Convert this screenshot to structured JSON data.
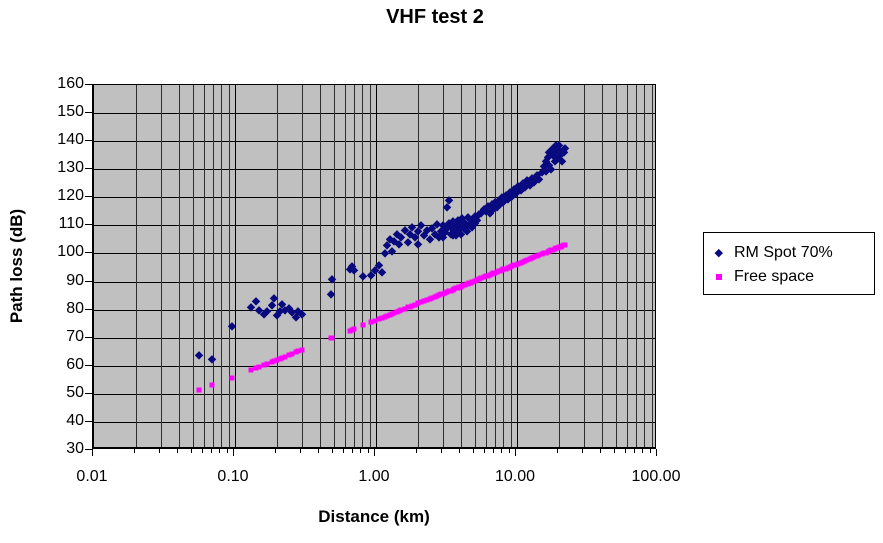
{
  "colors": {
    "plot_background": "#C0C0C0",
    "rm_spot": "#0A0A80",
    "free_space": "#FF00FF"
  },
  "legend": {
    "position": "right",
    "items": [
      {
        "label": "RM Spot 70%",
        "marker": "diamond",
        "color": "#0A0A80"
      },
      {
        "label": "Free space",
        "marker": "square",
        "color": "#FF00FF"
      }
    ]
  },
  "chart_data": {
    "type": "scatter",
    "title": "VHF test 2",
    "xlabel": "Distance (km)",
    "ylabel": "Path loss (dB)",
    "x_scale": "log",
    "xlim": [
      0.01,
      100
    ],
    "ylim": [
      30,
      160
    ],
    "y_step": 10,
    "grid": true,
    "legend_position": "right",
    "x_ticks": [
      "0.01",
      "0.10",
      "1.00",
      "10.00",
      "100.00"
    ],
    "y_ticks": [
      160,
      150,
      140,
      130,
      120,
      110,
      100,
      90,
      80,
      70,
      60,
      50,
      40,
      30
    ],
    "series": [
      {
        "name": "RM Spot 70%",
        "marker": "diamond",
        "color": "#0A0A80",
        "points": [
          [
            0.056,
            64
          ],
          [
            0.069,
            62.5
          ],
          [
            0.095,
            74
          ],
          [
            0.13,
            81
          ],
          [
            0.14,
            83
          ],
          [
            0.148,
            80
          ],
          [
            0.16,
            78.5
          ],
          [
            0.17,
            79.5
          ],
          [
            0.183,
            81.5
          ],
          [
            0.19,
            84
          ],
          [
            0.2,
            78
          ],
          [
            0.207,
            79.5
          ],
          [
            0.217,
            82
          ],
          [
            0.225,
            80
          ],
          [
            0.24,
            80.5
          ],
          [
            0.254,
            79
          ],
          [
            0.27,
            77.5
          ],
          [
            0.28,
            79.5
          ],
          [
            0.3,
            78.5
          ],
          [
            0.48,
            85.5
          ],
          [
            0.49,
            91
          ],
          [
            0.65,
            94.5
          ],
          [
            0.68,
            95.5
          ],
          [
            0.7,
            94
          ],
          [
            0.81,
            92
          ],
          [
            0.92,
            92.5
          ],
          [
            0.98,
            94
          ],
          [
            1.05,
            96
          ],
          [
            1.1,
            93.5
          ],
          [
            1.16,
            100
          ],
          [
            1.2,
            103
          ],
          [
            1.25,
            105
          ],
          [
            1.3,
            101
          ],
          [
            1.35,
            104.5
          ],
          [
            1.4,
            107
          ],
          [
            1.45,
            103.5
          ],
          [
            1.5,
            106
          ],
          [
            1.6,
            108.5
          ],
          [
            1.7,
            104
          ],
          [
            1.75,
            107
          ],
          [
            1.8,
            109.5
          ],
          [
            1.9,
            106
          ],
          [
            2.0,
            108
          ],
          [
            2.0,
            103.5
          ],
          [
            2.1,
            110
          ],
          [
            2.2,
            106.5
          ],
          [
            2.3,
            108.5
          ],
          [
            2.4,
            105
          ],
          [
            2.5,
            109
          ],
          [
            2.6,
            107
          ],
          [
            2.7,
            110.5
          ],
          [
            2.8,
            106
          ],
          [
            2.9,
            108
          ],
          [
            3.0,
            106
          ],
          [
            3.0,
            110
          ],
          [
            3.1,
            107.5
          ],
          [
            3.2,
            109
          ],
          [
            3.2,
            116.5
          ],
          [
            3.3,
            119
          ],
          [
            3.3,
            111
          ],
          [
            3.4,
            107
          ],
          [
            3.4,
            109.5
          ],
          [
            3.5,
            106.5
          ],
          [
            3.5,
            111.5
          ],
          [
            3.6,
            108
          ],
          [
            3.7,
            110
          ],
          [
            3.7,
            106.5
          ],
          [
            3.8,
            112
          ],
          [
            3.9,
            108.5
          ],
          [
            4.0,
            110.5
          ],
          [
            4.0,
            107
          ],
          [
            4.1,
            112.5
          ],
          [
            4.2,
            109
          ],
          [
            4.3,
            111
          ],
          [
            4.4,
            108
          ],
          [
            4.5,
            113
          ],
          [
            4.6,
            110
          ],
          [
            4.7,
            112
          ],
          [
            4.8,
            109.5
          ],
          [
            5.0,
            113.5
          ],
          [
            5.0,
            111
          ],
          [
            5.2,
            112
          ],
          [
            5.4,
            114
          ],
          [
            5.6,
            114.5
          ],
          [
            5.8,
            116
          ],
          [
            6.0,
            115
          ],
          [
            6.2,
            117
          ],
          [
            6.4,
            114.5
          ],
          [
            6.6,
            117.5
          ],
          [
            6.8,
            116
          ],
          [
            7.0,
            118.5
          ],
          [
            7.2,
            116.5
          ],
          [
            7.4,
            119
          ],
          [
            7.6,
            117.5
          ],
          [
            7.8,
            120
          ],
          [
            8.0,
            118.5
          ],
          [
            8.3,
            121
          ],
          [
            8.6,
            119.5
          ],
          [
            8.9,
            122
          ],
          [
            9.2,
            120.5
          ],
          [
            9.5,
            123
          ],
          [
            9.8,
            121.5
          ],
          [
            10.2,
            124
          ],
          [
            10.6,
            122.5
          ],
          [
            11.0,
            125
          ],
          [
            11.4,
            123.5
          ],
          [
            11.8,
            126
          ],
          [
            12.3,
            124.5
          ],
          [
            12.8,
            127
          ],
          [
            13.3,
            125.5
          ],
          [
            13.8,
            128
          ],
          [
            14.4,
            126.5
          ],
          [
            15.0,
            129
          ],
          [
            15.5,
            131
          ],
          [
            16.0,
            133
          ],
          [
            16.0,
            129.5
          ],
          [
            16.5,
            134.5
          ],
          [
            17.0,
            131.5
          ],
          [
            17.0,
            136
          ],
          [
            17.5,
            130
          ],
          [
            18.0,
            135
          ],
          [
            18.0,
            137.5
          ],
          [
            18.5,
            133
          ],
          [
            19.0,
            136.5
          ],
          [
            19.0,
            138.5
          ],
          [
            19.5,
            134
          ],
          [
            20.0,
            137
          ],
          [
            20.0,
            138.5
          ],
          [
            20.5,
            135.5
          ],
          [
            21.0,
            133
          ],
          [
            21.5,
            136
          ],
          [
            22.0,
            137.5
          ]
        ]
      },
      {
        "name": "Free space",
        "marker": "square",
        "color": "#FF00FF",
        "points": [
          [
            0.056,
            51.2
          ],
          [
            0.069,
            53.0
          ],
          [
            0.095,
            55.8
          ],
          [
            0.13,
            58.5
          ],
          [
            0.14,
            59.1
          ],
          [
            0.148,
            59.6
          ],
          [
            0.16,
            60.3
          ],
          [
            0.17,
            60.8
          ],
          [
            0.183,
            61.4
          ],
          [
            0.19,
            61.8
          ],
          [
            0.2,
            62.2
          ],
          [
            0.207,
            62.5
          ],
          [
            0.217,
            62.9
          ],
          [
            0.225,
            63.2
          ],
          [
            0.24,
            63.8
          ],
          [
            0.254,
            64.3
          ],
          [
            0.27,
            64.8
          ],
          [
            0.28,
            65.1
          ],
          [
            0.3,
            65.7
          ],
          [
            0.48,
            69.8
          ],
          [
            0.49,
            70.0
          ],
          [
            0.65,
            72.5
          ],
          [
            0.68,
            72.9
          ],
          [
            0.7,
            73.1
          ],
          [
            0.81,
            74.4
          ],
          [
            0.92,
            75.5
          ],
          [
            0.98,
            76.0
          ],
          [
            1.05,
            76.6
          ],
          [
            1.1,
            77.0
          ],
          [
            1.16,
            77.5
          ],
          [
            1.2,
            77.8
          ],
          [
            1.25,
            78.1
          ],
          [
            1.3,
            78.5
          ],
          [
            1.35,
            78.8
          ],
          [
            1.4,
            79.1
          ],
          [
            1.45,
            79.4
          ],
          [
            1.5,
            79.7
          ],
          [
            1.6,
            80.3
          ],
          [
            1.7,
            80.8
          ],
          [
            1.75,
            81.1
          ],
          [
            1.8,
            81.3
          ],
          [
            1.9,
            81.8
          ],
          [
            2.0,
            82.2
          ],
          [
            2.1,
            82.6
          ],
          [
            2.2,
            83.0
          ],
          [
            2.3,
            83.4
          ],
          [
            2.4,
            83.8
          ],
          [
            2.5,
            84.2
          ],
          [
            2.6,
            84.5
          ],
          [
            2.7,
            84.8
          ],
          [
            2.8,
            85.1
          ],
          [
            2.9,
            85.4
          ],
          [
            3.0,
            85.7
          ],
          [
            3.1,
            86.0
          ],
          [
            3.2,
            86.3
          ],
          [
            3.3,
            86.6
          ],
          [
            3.4,
            86.8
          ],
          [
            3.5,
            87.1
          ],
          [
            3.6,
            87.3
          ],
          [
            3.7,
            87.6
          ],
          [
            3.8,
            87.8
          ],
          [
            3.9,
            88.0
          ],
          [
            4.0,
            88.2
          ],
          [
            4.1,
            88.5
          ],
          [
            4.2,
            88.7
          ],
          [
            4.3,
            88.9
          ],
          [
            4.4,
            89.1
          ],
          [
            4.5,
            89.3
          ],
          [
            4.6,
            89.5
          ],
          [
            4.7,
            89.6
          ],
          [
            4.8,
            89.8
          ],
          [
            5.0,
            90.2
          ],
          [
            5.2,
            90.5
          ],
          [
            5.4,
            90.8
          ],
          [
            5.6,
            91.2
          ],
          [
            5.8,
            91.5
          ],
          [
            6.0,
            91.8
          ],
          [
            6.2,
            92.0
          ],
          [
            6.4,
            92.3
          ],
          [
            6.6,
            92.6
          ],
          [
            6.8,
            92.9
          ],
          [
            7.0,
            93.1
          ],
          [
            7.2,
            93.3
          ],
          [
            7.4,
            93.6
          ],
          [
            7.6,
            93.8
          ],
          [
            7.8,
            94.0
          ],
          [
            8.0,
            94.3
          ],
          [
            8.3,
            94.6
          ],
          [
            8.6,
            94.9
          ],
          [
            8.9,
            95.2
          ],
          [
            9.2,
            95.5
          ],
          [
            9.5,
            95.8
          ],
          [
            9.8,
            96.0
          ],
          [
            10.2,
            96.4
          ],
          [
            10.6,
            96.7
          ],
          [
            11.0,
            97.0
          ],
          [
            11.4,
            97.3
          ],
          [
            11.8,
            97.6
          ],
          [
            12.3,
            98.0
          ],
          [
            12.8,
            98.3
          ],
          [
            13.3,
            98.7
          ],
          [
            13.8,
            99.0
          ],
          [
            14.4,
            99.4
          ],
          [
            15.0,
            99.7
          ],
          [
            15.5,
            100.0
          ],
          [
            16.0,
            100.3
          ],
          [
            16.5,
            100.6
          ],
          [
            17.0,
            100.8
          ],
          [
            17.5,
            101.1
          ],
          [
            18.0,
            101.3
          ],
          [
            18.5,
            101.5
          ],
          [
            19.0,
            101.8
          ],
          [
            19.5,
            102.0
          ],
          [
            20.0,
            102.2
          ],
          [
            20.5,
            102.4
          ],
          [
            21.0,
            102.6
          ],
          [
            21.5,
            102.9
          ],
          [
            22.0,
            103.1
          ]
        ]
      }
    ]
  }
}
